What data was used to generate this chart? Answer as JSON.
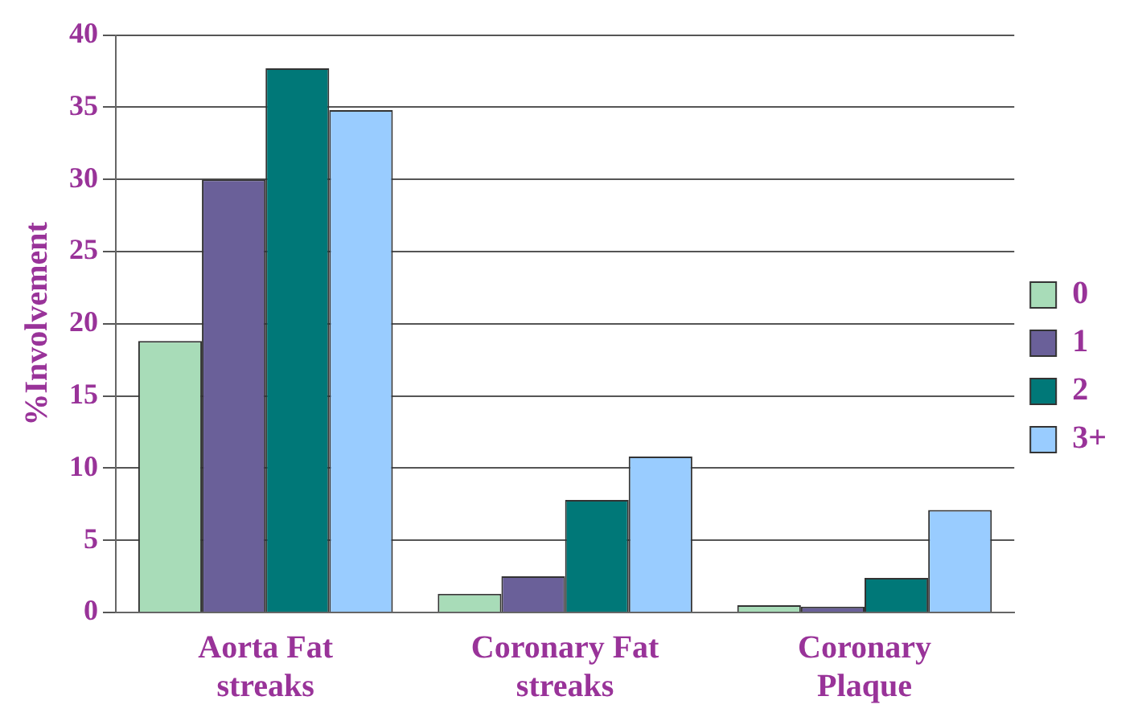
{
  "chart_data": {
    "type": "bar",
    "ylabel": "%Involvement",
    "categories": [
      "Aorta Fat streaks",
      "Coronary Fat streaks",
      "Coronary Plaque"
    ],
    "series": [
      {
        "name": "0",
        "color": "#a8dcb8",
        "values": [
          18.8,
          1.3,
          0.5
        ]
      },
      {
        "name": "1",
        "color": "#6a6099",
        "values": [
          30,
          2.5,
          0.4
        ]
      },
      {
        "name": "2",
        "color": "#007878",
        "values": [
          37.7,
          7.8,
          2.4
        ]
      },
      {
        "name": "3+",
        "color": "#99ccff",
        "values": [
          34.8,
          10.8,
          7.1
        ]
      }
    ],
    "ylim": [
      0,
      40
    ],
    "yticks": [
      0,
      5,
      10,
      15,
      20,
      25,
      30,
      35,
      40
    ],
    "grid": "y",
    "legend": "right"
  }
}
